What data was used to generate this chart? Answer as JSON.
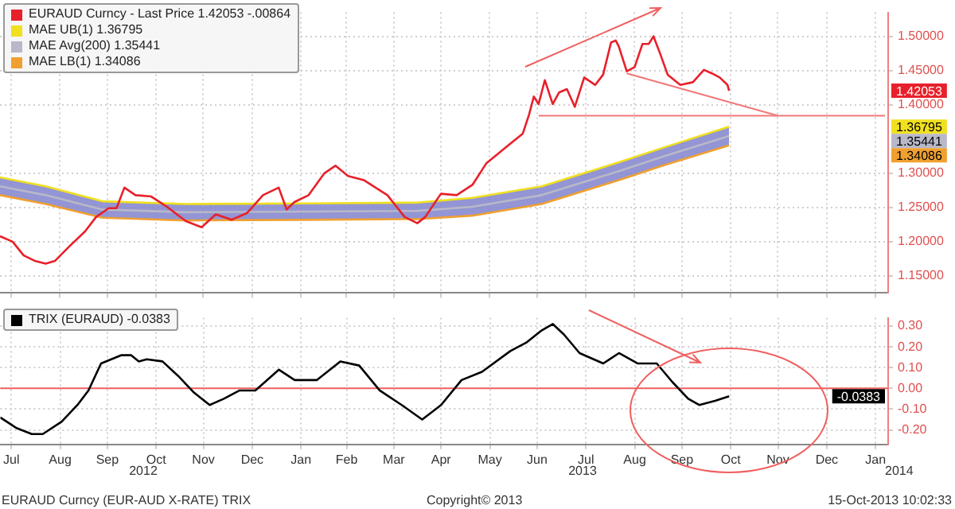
{
  "chart_data": [
    {
      "type": "line",
      "legend": "top left",
      "grid": true,
      "marker": "none",
      "tick_labels": "y",
      "xlim": [
        "2012-07-09",
        "2014-01-24"
      ],
      "xticks": [
        {
          "value": "2012-07-16",
          "label": null
        },
        {
          "value": "2012-08-16",
          "label": null
        },
        {
          "value": "2012-09-15",
          "label": null
        },
        {
          "value": "2012-10-16",
          "label": null
        },
        {
          "value": "2012-11-15",
          "label": null
        },
        {
          "value": "2012-12-16",
          "label": null
        },
        {
          "value": "2013-01-16",
          "label": null
        },
        {
          "value": "2013-02-14",
          "label": null
        },
        {
          "value": "2013-03-16",
          "label": null
        },
        {
          "value": "2013-04-15",
          "label": null
        },
        {
          "value": "2013-05-16",
          "label": null
        },
        {
          "value": "2013-06-15",
          "label": null
        },
        {
          "value": "2013-07-16",
          "label": null
        },
        {
          "value": "2013-08-16",
          "label": null
        },
        {
          "value": "2013-09-15",
          "label": null
        },
        {
          "value": "2013-10-16",
          "label": null
        },
        {
          "value": "2013-11-15",
          "label": null
        },
        {
          "value": "2013-12-16",
          "label": null
        },
        {
          "value": "2014-01-16",
          "label": null
        }
      ],
      "ylim": [
        1.125,
        1.535
      ],
      "yticks": [
        {
          "value": 1.15,
          "label": "1.15000"
        },
        {
          "value": 1.2,
          "label": "1.20000"
        },
        {
          "value": 1.25,
          "label": "1.25000"
        },
        {
          "value": 1.3,
          "label": "1.30000"
        },
        {
          "value": 1.4,
          "label": "1.40000"
        },
        {
          "value": 1.45,
          "label": "1.45000"
        },
        {
          "value": 1.5,
          "label": "1.50000"
        }
      ],
      "series": [
        {
          "name": "EURAUD Curncy - Last Price 1.42053 -.00864",
          "color": "#e8202a",
          "x": [
            "2012-07-09",
            "2012-07-17",
            "2012-07-24",
            "2012-07-31",
            "2012-08-07",
            "2012-08-13",
            "2012-08-22",
            "2012-09-01",
            "2012-09-08",
            "2012-09-16",
            "2012-09-21",
            "2012-09-26",
            "2012-10-03",
            "2012-10-13",
            "2012-10-23",
            "2012-11-04",
            "2012-11-14",
            "2012-11-23",
            "2012-12-03",
            "2012-12-13",
            "2012-12-23",
            "2013-01-02",
            "2013-01-07",
            "2013-01-12",
            "2013-01-21",
            "2013-01-31",
            "2013-02-07",
            "2013-02-15",
            "2013-02-25",
            "2013-03-12",
            "2013-03-23",
            "2013-03-31",
            "2013-04-05",
            "2013-04-15",
            "2013-04-25",
            "2013-05-05",
            "2013-05-14",
            "2013-05-21",
            "2013-05-29",
            "2013-06-06",
            "2013-06-10",
            "2013-06-13",
            "2013-06-16",
            "2013-06-20",
            "2013-06-25",
            "2013-06-29",
            "2013-07-04",
            "2013-07-09",
            "2013-07-15",
            "2013-07-22",
            "2013-07-27",
            "2013-08-01",
            "2013-08-04",
            "2013-08-06",
            "2013-08-11",
            "2013-08-16",
            "2013-08-21",
            "2013-08-25",
            "2013-08-28",
            "2013-09-01",
            "2013-09-06",
            "2013-09-14",
            "2013-09-22",
            "2013-09-29",
            "2013-10-04",
            "2013-10-09",
            "2013-10-14",
            "2013-10-15"
          ],
          "values": [
            1.208,
            1.2,
            1.18,
            1.172,
            1.168,
            1.172,
            1.193,
            1.215,
            1.236,
            1.249,
            1.249,
            1.279,
            1.268,
            1.266,
            1.251,
            1.23,
            1.221,
            1.24,
            1.232,
            1.242,
            1.268,
            1.279,
            1.247,
            1.258,
            1.268,
            1.3,
            1.311,
            1.296,
            1.29,
            1.268,
            1.236,
            1.227,
            1.236,
            1.27,
            1.268,
            1.283,
            1.315,
            1.328,
            1.343,
            1.358,
            1.386,
            1.412,
            1.401,
            1.436,
            1.401,
            1.418,
            1.423,
            1.397,
            1.44,
            1.429,
            1.444,
            1.491,
            1.494,
            1.485,
            1.449,
            1.455,
            1.489,
            1.489,
            1.5,
            1.476,
            1.444,
            1.429,
            1.433,
            1.451,
            1.446,
            1.44,
            1.429,
            1.42053
          ]
        },
        {
          "name": "MAE UB(1) 1.36795",
          "color": "#f0e020",
          "x": [
            "2012-07-09",
            "2012-08-07",
            "2012-09-12",
            "2012-11-04",
            "2013-01-21",
            "2013-03-31",
            "2013-05-05",
            "2013-06-18",
            "2013-08-06",
            "2013-09-04",
            "2013-10-15"
          ],
          "values": [
            1.294,
            1.281,
            1.259,
            1.255,
            1.256,
            1.257,
            1.264,
            1.281,
            1.316,
            1.338,
            1.36795
          ]
        },
        {
          "name": "MAE Avg(200) 1.35441",
          "color": "#b8b8c8",
          "x": [
            "2012-07-09",
            "2012-08-07",
            "2012-09-12",
            "2012-11-04",
            "2013-01-21",
            "2013-03-31",
            "2013-05-05",
            "2013-06-18",
            "2013-08-06",
            "2013-09-04",
            "2013-10-15"
          ],
          "values": [
            1.281,
            1.268,
            1.247,
            1.243,
            1.244,
            1.245,
            1.251,
            1.268,
            1.303,
            1.325,
            1.35441
          ],
          "lower": [
            1.268,
            1.255,
            1.235,
            1.231,
            1.232,
            1.233,
            1.238,
            1.255,
            1.29,
            1.312,
            1.34086
          ],
          "upper": [
            1.294,
            1.281,
            1.259,
            1.255,
            1.256,
            1.257,
            1.264,
            1.281,
            1.316,
            1.338,
            1.36795
          ]
        },
        {
          "name": "MAE LB(1) 1.34086",
          "color": "#f0a030",
          "x": [
            "2012-07-09",
            "2012-08-07",
            "2012-09-12",
            "2012-11-04",
            "2013-01-21",
            "2013-03-31",
            "2013-05-05",
            "2013-06-18",
            "2013-08-06",
            "2013-09-04",
            "2013-10-15"
          ],
          "values": [
            1.268,
            1.255,
            1.235,
            1.231,
            1.232,
            1.233,
            1.238,
            1.255,
            1.29,
            1.312,
            1.34086
          ]
        },
        {
          "color": "#f07878",
          "x": [
            "2013-06-16",
            "2014-01-22"
          ],
          "values": [
            1.384,
            1.384
          ]
        },
        {
          "color": "#f07878",
          "x": [
            "2013-08-11",
            "2013-11-15"
          ],
          "values": [
            1.446,
            1.384
          ]
        }
      ],
      "annotations": [
        "1.42053",
        "1.36795",
        "1.35441",
        "1.34086"
      ]
    },
    {
      "type": "line",
      "legend": "top left",
      "grid": true,
      "marker": "none",
      "xlim": [
        "2012-07-09",
        "2014-01-24"
      ],
      "xticks": [
        {
          "value": "2012-07-16",
          "label": "Jul"
        },
        {
          "value": "2012-08-16",
          "label": "Aug"
        },
        {
          "value": "2012-09-15",
          "label": "Sep"
        },
        {
          "value": "2012-10-16",
          "label": "Oct"
        },
        {
          "value": "2012-11-15",
          "label": "Nov"
        },
        {
          "value": "2012-12-16",
          "label": "Dec"
        },
        {
          "value": "2013-01-16",
          "label": "Jan"
        },
        {
          "value": "2013-02-14",
          "label": "Feb"
        },
        {
          "value": "2013-03-16",
          "label": "Mar"
        },
        {
          "value": "2013-04-15",
          "label": "Apr"
        },
        {
          "value": "2013-05-16",
          "label": "May"
        },
        {
          "value": "2013-06-15",
          "label": "Jun"
        },
        {
          "value": "2013-07-16",
          "label": "Jul"
        },
        {
          "value": "2013-08-16",
          "label": "Aug"
        },
        {
          "value": "2013-09-15",
          "label": "Sep"
        },
        {
          "value": "2013-10-16",
          "label": "Oct"
        },
        {
          "value": "2013-11-15",
          "label": "Nov"
        },
        {
          "value": "2013-12-16",
          "label": "Dec"
        },
        {
          "value": "2014-01-16",
          "label": "Jan"
        }
      ],
      "ylim": [
        -0.27,
        0.34
      ],
      "yticks": [
        {
          "value": -0.2,
          "label": "-0.20"
        },
        {
          "value": -0.1,
          "label": "-0.10"
        },
        {
          "value": 0,
          "label": "0.00"
        },
        {
          "value": 0.1,
          "label": "0.10"
        },
        {
          "value": 0.2,
          "label": "0.20"
        },
        {
          "value": 0.3,
          "label": "0.30"
        }
      ],
      "ref_lines": [
        {
          "axis": "y",
          "value": 0,
          "color": "#f06060"
        }
      ],
      "series": [
        {
          "name": "TRIX (EURAUD) -0.0383",
          "color": "#000000",
          "x": [
            "2012-07-09",
            "2012-07-19",
            "2012-07-29",
            "2012-08-05",
            "2012-08-17",
            "2012-08-27",
            "2012-09-03",
            "2012-09-11",
            "2012-09-24",
            "2012-09-30",
            "2012-10-05",
            "2012-10-10",
            "2012-10-20",
            "2012-10-30",
            "2012-11-09",
            "2012-11-19",
            "2012-11-28",
            "2012-12-08",
            "2012-12-18",
            "2013-01-02",
            "2013-01-12",
            "2013-01-26",
            "2013-02-10",
            "2013-02-22",
            "2013-03-07",
            "2013-03-21",
            "2013-04-03",
            "2013-04-15",
            "2013-04-28",
            "2013-05-11",
            "2013-05-29",
            "2013-06-08",
            "2013-06-18",
            "2013-06-25",
            "2013-07-02",
            "2013-07-12",
            "2013-07-27",
            "2013-08-06",
            "2013-08-18",
            "2013-08-30",
            "2013-09-09",
            "2013-09-19",
            "2013-09-26",
            "2013-10-06",
            "2013-10-15"
          ],
          "values": [
            -0.14,
            -0.19,
            -0.22,
            -0.22,
            -0.16,
            -0.08,
            -0.01,
            0.12,
            0.16,
            0.16,
            0.13,
            0.14,
            0.13,
            0.06,
            -0.02,
            -0.08,
            -0.05,
            -0.01,
            -0.01,
            0.09,
            0.04,
            0.04,
            0.13,
            0.11,
            -0.01,
            -0.08,
            -0.15,
            -0.08,
            0.04,
            0.08,
            0.18,
            0.22,
            0.28,
            0.31,
            0.26,
            0.17,
            0.12,
            0.17,
            0.12,
            0.12,
            0.03,
            -0.05,
            -0.08,
            -0.06,
            -0.0383
          ]
        }
      ],
      "annotations": [
        "-0.0383",
        "2012",
        "2013",
        "2014",
        "EURAUD Curncy (EUR-AUD X-RATE) TRIX",
        "Copyright© 2013",
        "15-Oct-2013 10:02:33"
      ]
    }
  ]
}
